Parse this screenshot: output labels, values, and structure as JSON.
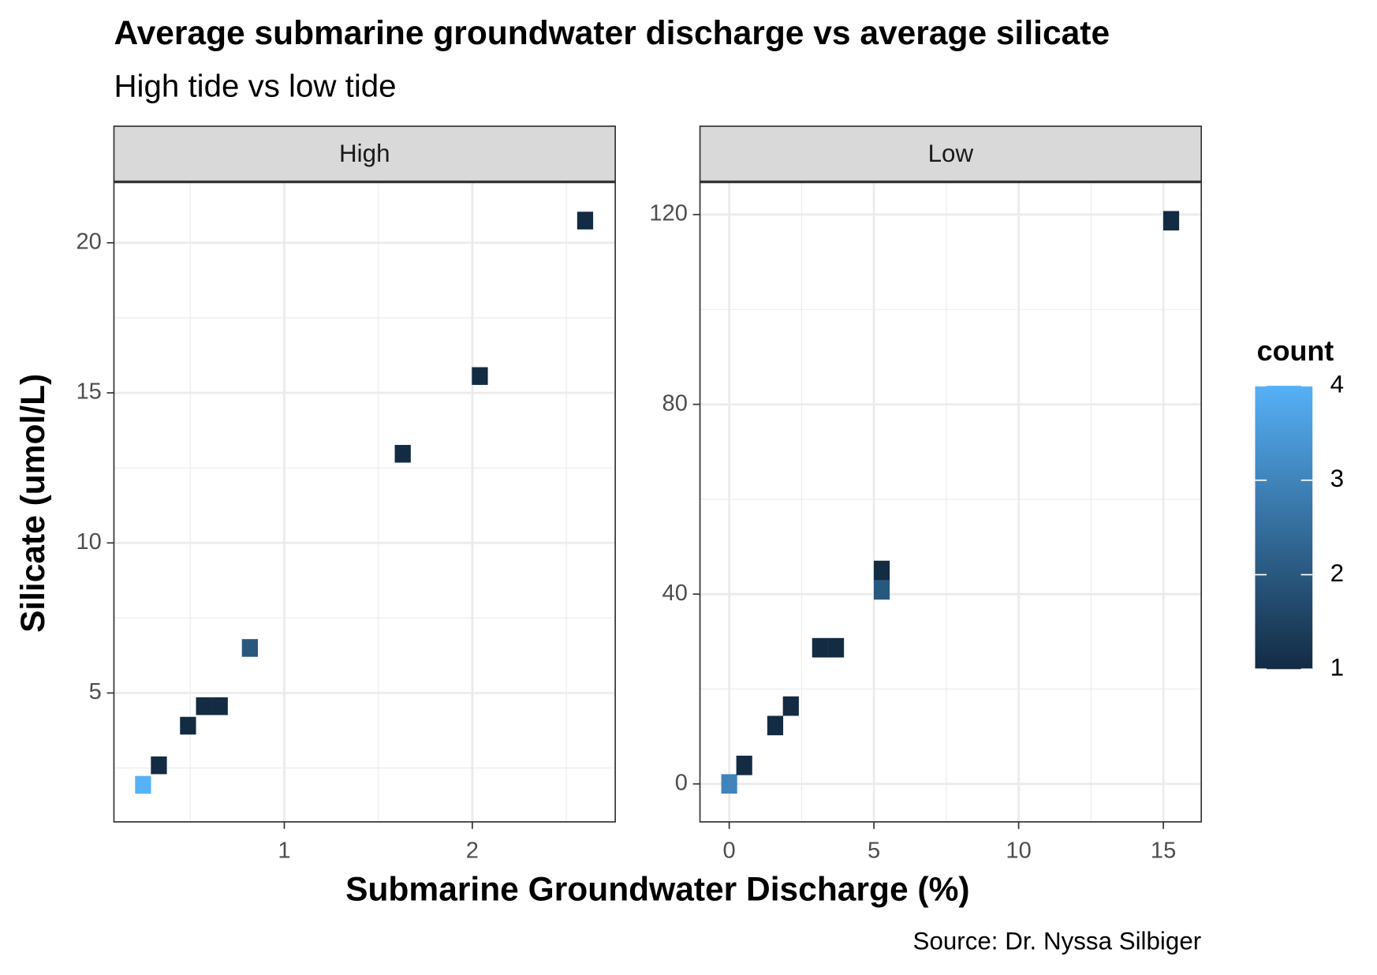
{
  "title": "Average submarine groundwater discharge vs average silicate",
  "subtitle": "High tide vs low tide",
  "x_label": "Submarine Groundwater Discharge (%)",
  "y_label": "Silicate (umol/L)",
  "caption": "Source: Dr. Nyssa Silbiger",
  "legend": {
    "title": "count",
    "ticks": [
      1,
      2,
      3,
      4
    ],
    "range": [
      1,
      4
    ],
    "colors": [
      "#132B43",
      "#56B1F7"
    ]
  },
  "chart_data": [
    {
      "type": "heatmap",
      "title": "High",
      "x": [
        0.249,
        0.333,
        0.488,
        0.573,
        0.657,
        0.817,
        1.63,
        2.04,
        2.6
      ],
      "y": [
        1.94,
        2.59,
        3.91,
        4.56,
        4.56,
        6.5,
        12.97,
        15.56,
        20.74
      ],
      "values": [
        4,
        1,
        1,
        1,
        1,
        2,
        1,
        1,
        1
      ],
      "binwidth": [
        0.085,
        0.59
      ],
      "xlim": [
        0.094,
        2.76
      ],
      "ylim": [
        0.706,
        22.03
      ],
      "xticks": [
        1,
        2
      ],
      "yticks": [
        5,
        10,
        15,
        20
      ],
      "grid": true
    },
    {
      "type": "heatmap",
      "title": "Low",
      "x": [
        0,
        0.52,
        1.59,
        2.13,
        3.14,
        3.69,
        5.27,
        5.27,
        15.27
      ],
      "y": [
        0,
        3.9,
        12.3,
        16.4,
        28.7,
        28.7,
        45.0,
        40.9,
        118.7
      ],
      "values": [
        3,
        1,
        1,
        1,
        1,
        1,
        1,
        2,
        1
      ],
      "binwidth": [
        0.55,
        4.1
      ],
      "xlim": [
        -1.01,
        16.31
      ],
      "ylim": [
        -8.0,
        126.9
      ],
      "xticks": [
        0,
        5,
        10,
        15
      ],
      "yticks": [
        0,
        40,
        80,
        120
      ],
      "grid": true
    }
  ]
}
